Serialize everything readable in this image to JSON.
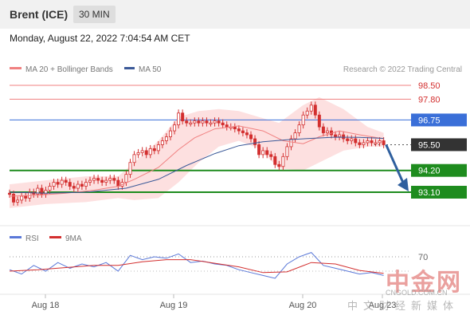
{
  "header": {
    "title": "Brent (ICE)",
    "timeframe": "30 MIN"
  },
  "datetime": "Monday, August 22, 2022 7:04:54 AM CET",
  "legend": {
    "ma20": "MA 20 + Bollinger Bands",
    "ma50": "MA 50",
    "copyright": "Research © 2022 Trading Central",
    "rsi": "RSI",
    "ma9": "9MA"
  },
  "colors": {
    "candle": "#d32f2f",
    "bollinger_fill": "#fde0e0",
    "ma20": "#f08080",
    "ma50": "#3b5998",
    "resistance": "#f08080",
    "pivot": "#3a6fd8",
    "support": "#1e8c1e",
    "current": "#333333",
    "arrow": "#2f5f9e",
    "rsi": "#5a78d8",
    "rsi_ma": "#d32f2f"
  },
  "chart_data": {
    "type": "candlestick",
    "x_ticks": [
      "Aug 18",
      "Aug 19",
      "Aug 20",
      "Aug 23"
    ],
    "y_axis_visible_labels": [
      93.1,
      94.2,
      95.5,
      96.75,
      97.8,
      98.5
    ],
    "levels": [
      {
        "name": "resistance_2",
        "value": 98.5,
        "label": "98.50",
        "kind": "resistance"
      },
      {
        "name": "resistance_1",
        "value": 97.8,
        "label": "97.80",
        "kind": "resistance"
      },
      {
        "name": "pivot",
        "value": 96.75,
        "label": "96.75",
        "kind": "pivot"
      },
      {
        "name": "current",
        "value": 95.5,
        "label": "95.50",
        "kind": "current"
      },
      {
        "name": "support_1",
        "value": 94.2,
        "label": "94.20",
        "kind": "support"
      },
      {
        "name": "support_2",
        "value": 93.1,
        "label": "93.10",
        "kind": "support"
      }
    ],
    "price_series": [
      [
        1,
        93.0
      ],
      [
        2,
        92.6
      ],
      [
        3,
        92.7
      ],
      [
        4,
        92.9
      ],
      [
        5,
        92.8
      ],
      [
        6,
        93.1
      ],
      [
        7,
        93.0
      ],
      [
        8,
        93.3
      ],
      [
        9,
        93.0
      ],
      [
        10,
        93.2
      ],
      [
        11,
        93.4
      ],
      [
        12,
        93.6
      ],
      [
        13,
        93.5
      ],
      [
        14,
        93.7
      ],
      [
        15,
        93.6
      ],
      [
        16,
        93.4
      ],
      [
        17,
        93.3
      ],
      [
        18,
        93.5
      ],
      [
        19,
        93.4
      ],
      [
        20,
        93.6
      ],
      [
        21,
        93.7
      ],
      [
        22,
        93.8
      ],
      [
        23,
        93.7
      ],
      [
        24,
        93.6
      ],
      [
        25,
        93.7
      ],
      [
        26,
        93.8
      ],
      [
        27,
        93.7
      ],
      [
        28,
        93.4
      ],
      [
        29,
        93.6
      ],
      [
        30,
        94.0
      ],
      [
        31,
        94.6
      ],
      [
        32,
        95.0
      ],
      [
        33,
        95.1
      ],
      [
        34,
        95.2
      ],
      [
        35,
        95.0
      ],
      [
        36,
        95.3
      ],
      [
        37,
        95.2
      ],
      [
        38,
        95.5
      ],
      [
        39,
        95.7
      ],
      [
        40,
        95.9
      ],
      [
        41,
        96.2
      ],
      [
        42,
        96.5
      ],
      [
        43,
        97.1
      ],
      [
        44,
        96.7
      ],
      [
        45,
        96.6
      ],
      [
        46,
        96.6
      ],
      [
        47,
        96.7
      ],
      [
        48,
        96.6
      ],
      [
        49,
        96.7
      ],
      [
        50,
        96.6
      ],
      [
        51,
        96.6
      ],
      [
        52,
        96.7
      ],
      [
        53,
        96.6
      ],
      [
        54,
        96.5
      ],
      [
        55,
        96.4
      ],
      [
        56,
        96.4
      ],
      [
        57,
        96.3
      ],
      [
        58,
        96.2
      ],
      [
        59,
        96.1
      ],
      [
        60,
        96.0
      ],
      [
        61,
        95.8
      ],
      [
        62,
        95.5
      ],
      [
        63,
        95.0
      ],
      [
        64,
        95.2
      ],
      [
        65,
        95.0
      ],
      [
        66,
        94.9
      ],
      [
        67,
        94.5
      ],
      [
        68,
        94.4
      ],
      [
        69,
        94.9
      ],
      [
        70,
        95.4
      ],
      [
        71,
        95.8
      ],
      [
        72,
        96.1
      ],
      [
        73,
        96.5
      ],
      [
        74,
        97.0
      ],
      [
        75,
        97.2
      ],
      [
        76,
        97.5
      ],
      [
        77,
        97.0
      ],
      [
        78,
        96.4
      ],
      [
        79,
        96.1
      ],
      [
        80,
        96.2
      ],
      [
        81,
        96.0
      ],
      [
        82,
        95.9
      ],
      [
        83,
        96.0
      ],
      [
        84,
        95.8
      ],
      [
        85,
        95.7
      ],
      [
        86,
        95.8
      ],
      [
        87,
        95.6
      ],
      [
        88,
        95.5
      ],
      [
        89,
        95.6
      ],
      [
        90,
        95.7
      ],
      [
        91,
        95.6
      ],
      [
        92,
        95.6
      ],
      [
        93,
        95.7
      ],
      [
        94,
        95.5
      ]
    ],
    "ma20_series": [
      [
        1,
        92.9
      ],
      [
        8,
        92.95
      ],
      [
        15,
        93.05
      ],
      [
        22,
        93.2
      ],
      [
        28,
        93.4
      ],
      [
        32,
        93.75
      ],
      [
        38,
        94.35
      ],
      [
        43,
        95.25
      ],
      [
        47,
        95.85
      ],
      [
        52,
        96.3
      ],
      [
        58,
        96.45
      ],
      [
        64,
        96.2
      ],
      [
        69,
        95.7
      ],
      [
        74,
        95.55
      ],
      [
        78,
        95.9
      ],
      [
        83,
        96.2
      ],
      [
        88,
        96.0
      ],
      [
        94,
        95.8
      ]
    ],
    "ma50_series": [
      [
        1,
        93.1
      ],
      [
        10,
        93.05
      ],
      [
        20,
        93.1
      ],
      [
        30,
        93.3
      ],
      [
        38,
        93.75
      ],
      [
        45,
        94.45
      ],
      [
        52,
        95.05
      ],
      [
        58,
        95.45
      ],
      [
        64,
        95.65
      ],
      [
        70,
        95.75
      ],
      [
        76,
        95.82
      ],
      [
        82,
        95.88
      ],
      [
        88,
        95.87
      ],
      [
        94,
        95.82
      ]
    ],
    "bollinger_upper": [
      [
        1,
        93.5
      ],
      [
        10,
        93.7
      ],
      [
        20,
        93.9
      ],
      [
        28,
        93.9
      ],
      [
        32,
        94.6
      ],
      [
        38,
        95.7
      ],
      [
        43,
        96.9
      ],
      [
        48,
        97.2
      ],
      [
        53,
        97.3
      ],
      [
        58,
        97.2
      ],
      [
        63,
        96.9
      ],
      [
        68,
        96.6
      ],
      [
        74,
        97.5
      ],
      [
        78,
        97.9
      ],
      [
        84,
        97.3
      ],
      [
        90,
        96.4
      ],
      [
        94,
        96.1
      ]
    ],
    "bollinger_lower": [
      [
        1,
        92.3
      ],
      [
        10,
        92.5
      ],
      [
        20,
        92.6
      ],
      [
        28,
        92.8
      ],
      [
        32,
        92.7
      ],
      [
        38,
        92.8
      ],
      [
        43,
        93.6
      ],
      [
        48,
        94.6
      ],
      [
        53,
        95.4
      ],
      [
        58,
        95.7
      ],
      [
        63,
        95.3
      ],
      [
        68,
        94.3
      ],
      [
        74,
        94.2
      ],
      [
        78,
        94.6
      ],
      [
        84,
        95.2
      ],
      [
        90,
        95.4
      ],
      [
        94,
        95.4
      ]
    ],
    "rsi": {
      "level_label": "70",
      "level": 70,
      "rsi_series": [
        [
          1,
          52
        ],
        [
          4,
          46
        ],
        [
          7,
          58
        ],
        [
          10,
          50
        ],
        [
          13,
          62
        ],
        [
          16,
          54
        ],
        [
          19,
          60
        ],
        [
          22,
          56
        ],
        [
          25,
          62
        ],
        [
          28,
          50
        ],
        [
          31,
          72
        ],
        [
          34,
          66
        ],
        [
          37,
          70
        ],
        [
          40,
          68
        ],
        [
          43,
          74
        ],
        [
          46,
          62
        ],
        [
          49,
          64
        ],
        [
          52,
          60
        ],
        [
          55,
          58
        ],
        [
          58,
          52
        ],
        [
          61,
          48
        ],
        [
          64,
          44
        ],
        [
          67,
          40
        ],
        [
          70,
          60
        ],
        [
          73,
          70
        ],
        [
          76,
          76
        ],
        [
          79,
          58
        ],
        [
          82,
          54
        ],
        [
          85,
          50
        ],
        [
          88,
          46
        ],
        [
          91,
          48
        ],
        [
          94,
          44
        ]
      ],
      "ma9_series": [
        [
          1,
          50
        ],
        [
          8,
          52
        ],
        [
          15,
          55
        ],
        [
          22,
          58
        ],
        [
          28,
          58
        ],
        [
          34,
          63
        ],
        [
          40,
          66
        ],
        [
          46,
          66
        ],
        [
          52,
          61
        ],
        [
          58,
          56
        ],
        [
          64,
          48
        ],
        [
          70,
          49
        ],
        [
          76,
          62
        ],
        [
          82,
          60
        ],
        [
          88,
          51
        ],
        [
          94,
          47
        ]
      ]
    }
  }
}
